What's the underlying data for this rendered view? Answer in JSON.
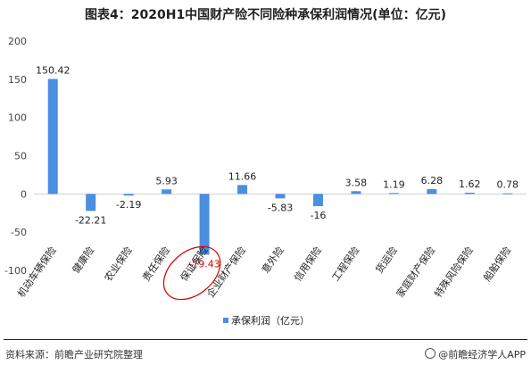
{
  "title": "图表4：2020H1中国财产险不同险种承保利润情况(单位：亿元)",
  "chart_data": {
    "type": "bar",
    "categories": [
      "机动车辆保险",
      "健康险",
      "农业保险",
      "责任保险",
      "保证保险",
      "企业财产保险",
      "意外险",
      "信用保险",
      "工程保险",
      "货运险",
      "家庭财产保险",
      "特殊风险保险",
      "船舶保险"
    ],
    "series": [
      {
        "name": "承保利润（亿元）",
        "values": [
          150.42,
          -22.21,
          -2.19,
          5.93,
          -79.43,
          11.66,
          -5.83,
          -16,
          3.58,
          1.19,
          6.28,
          1.62,
          0.78
        ]
      }
    ],
    "data_labels": [
      "150.42",
      "-22.21",
      "-2.19",
      "5.93",
      "-79.43",
      "11.66",
      "-5.83",
      "-16",
      "3.58",
      "1.19",
      "6.28",
      "1.62",
      "0.78"
    ],
    "highlighted_category": "保证保险",
    "ylim": [
      -100,
      200
    ],
    "yticks": [
      -100,
      -50,
      0,
      50,
      100,
      150,
      200
    ],
    "ytick_labels": [
      "-100",
      "-50",
      "0",
      "50",
      "100",
      "150",
      "200"
    ],
    "bar_color": "#4a8fe0",
    "highlight_color": "#d40000",
    "legend_position": "bottom"
  },
  "footer": {
    "source": "资料来源：前瞻产业研究院整理",
    "brand": "@前瞻经济学人APP"
  }
}
